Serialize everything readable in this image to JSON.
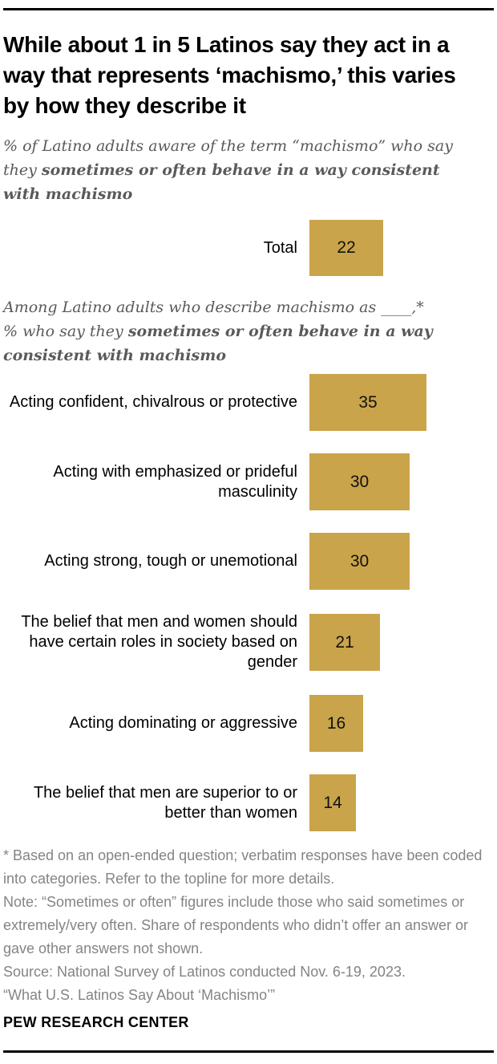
{
  "page": {
    "title": "While about 1 in 5 Latinos say they act in a way that represents ‘machismo,’ this varies by how they describe it",
    "brand": "PEW RESEARCH CENTER"
  },
  "subtitle": {
    "normal": "% of Latino adults aware of the term “machismo” who say they ",
    "bold": "sometimes or often behave in a way consistent with machismo"
  },
  "intro2": {
    "line1": "Among Latino adults who describe machismo as ____,*",
    "normal": "% who say they ",
    "bold": "sometimes or often behave in a way consistent with machismo"
  },
  "chart_data": {
    "type": "bar",
    "orientation": "horizontal",
    "total": {
      "label": "Total",
      "value": 22
    },
    "categories": [
      "Acting confident, chivalrous or protective",
      "Acting with emphasized or prideful masculinity",
      "Acting strong, tough or unemotional",
      "The belief that men and women should have certain roles in society based on gender",
      "Acting dominating or aggressive",
      "The belief that men are superior to or better than women"
    ],
    "values": [
      35,
      30,
      30,
      21,
      16,
      14
    ],
    "bar_color": "#C9A44A",
    "value_label_position": "inside-center",
    "axis_hidden": true,
    "xlim": [
      0,
      100
    ]
  },
  "notes": {
    "asterisk": "* Based on an open-ended question; verbatim responses have been coded into categories. Refer to the topline for more details.",
    "note": "Note: “Sometimes or often” figures include those who said sometimes or extremely/very often. Share of respondents who didn’t offer an answer or gave other answers not shown.",
    "source": "Source: National Survey of Latinos conducted Nov. 6-19, 2023.",
    "study": "“What U.S. Latinos Say About ‘Machismo’”"
  },
  "colors": {
    "bar_gold": "#C9A44A",
    "title_black": "#000000",
    "subtitle_gray": "#5A5A5C",
    "note_gray": "#828487"
  }
}
